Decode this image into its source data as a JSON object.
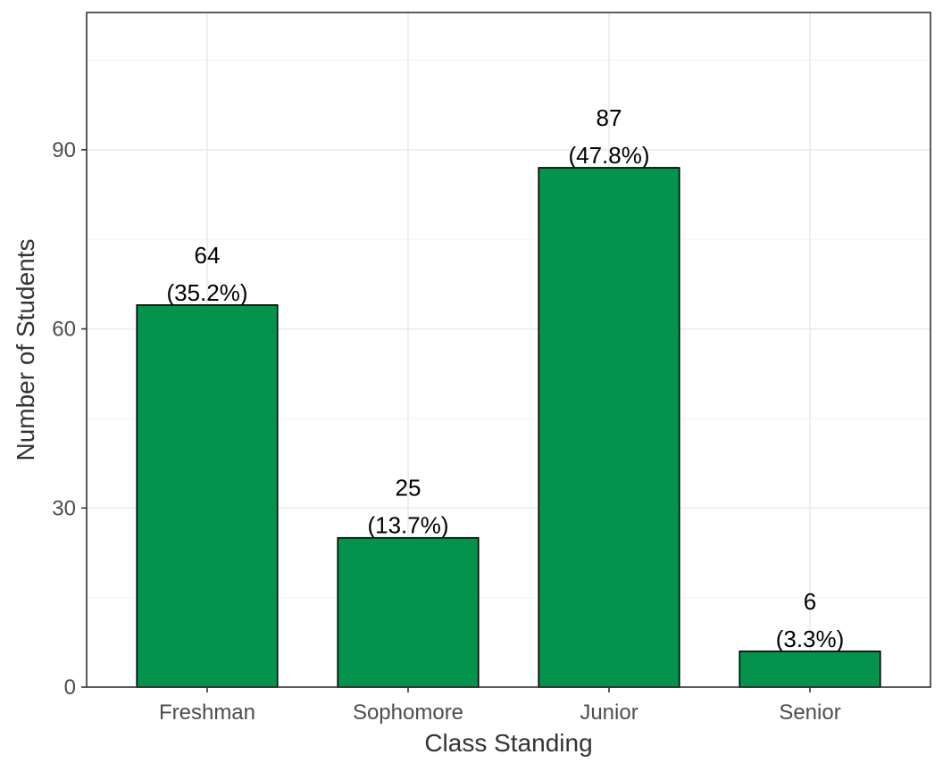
{
  "chart_data": {
    "type": "bar",
    "title": "",
    "xlabel": "Class Standing",
    "ylabel": "Number of Students",
    "categories": [
      "Freshman",
      "Sophomore",
      "Junior",
      "Senior"
    ],
    "values": [
      64,
      25,
      87,
      6
    ],
    "percent_labels": [
      "(35.2%)",
      "(13.7%)",
      "(47.8%)",
      "(3.3%)"
    ],
    "ylim": [
      0,
      113
    ],
    "yticks": [
      0,
      30,
      60,
      90
    ],
    "grid": true,
    "legend": "none",
    "colors": {
      "bar_fill": "#03934C",
      "bar_outline": "#000000",
      "panel_border": "#333333",
      "grid": "#ebebeb"
    }
  }
}
